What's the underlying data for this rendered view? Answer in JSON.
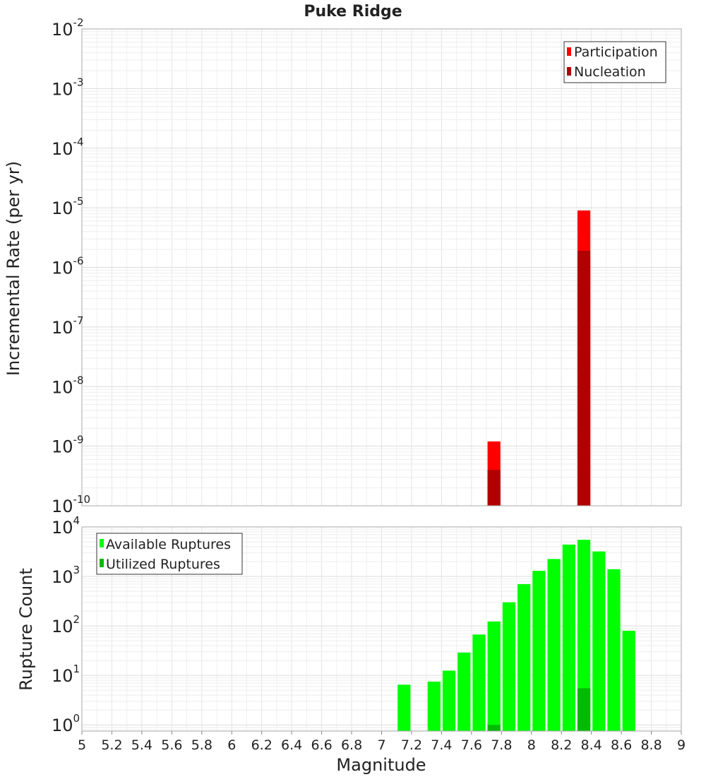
{
  "chart_data": {
    "title": "Puke Ridge",
    "type": "bar",
    "xlabel": "Magnitude",
    "xlim": [
      5,
      9
    ],
    "x_ticks": [
      "5",
      "5.2",
      "5.4",
      "5.6",
      "5.8",
      "6",
      "6.2",
      "6.4",
      "6.6",
      "6.8",
      "7",
      "7.2",
      "7.4",
      "7.6",
      "7.8",
      "8",
      "8.2",
      "8.4",
      "8.6",
      "8.8",
      "9"
    ],
    "bar_width": 0.1,
    "panels": [
      {
        "ylabel": "Incremental Rate (per yr)",
        "yscale": "log",
        "ylim": [
          1e-10,
          0.01
        ],
        "y_ticks": [
          {
            "base": "10",
            "exp": "-2",
            "value": 0.01
          },
          {
            "base": "10",
            "exp": "-3",
            "value": 0.001
          },
          {
            "base": "10",
            "exp": "-4",
            "value": 0.0001
          },
          {
            "base": "10",
            "exp": "-5",
            "value": 1e-05
          },
          {
            "base": "10",
            "exp": "-6",
            "value": 1e-06
          },
          {
            "base": "10",
            "exp": "-7",
            "value": 1e-07
          },
          {
            "base": "10",
            "exp": "-8",
            "value": 1e-08
          },
          {
            "base": "10",
            "exp": "-9",
            "value": 1e-09
          },
          {
            "base": "10",
            "exp": "-10",
            "value": 1e-10
          }
        ],
        "legend_position": "top-right",
        "series": [
          {
            "name": "Participation",
            "color": "#ff0000",
            "x": [
              7.75,
              8.35
            ],
            "values": [
              1.2e-09,
              9e-06
            ]
          },
          {
            "name": "Nucleation",
            "color": "#b20000",
            "x": [
              7.75,
              8.35
            ],
            "values": [
              4e-10,
              1.9e-06
            ]
          }
        ]
      },
      {
        "ylabel": "Rupture Count",
        "yscale": "log",
        "ylim": [
          0.75,
          10000
        ],
        "y_ticks": [
          {
            "base": "10",
            "exp": "4",
            "value": 10000
          },
          {
            "base": "10",
            "exp": "3",
            "value": 1000
          },
          {
            "base": "10",
            "exp": "2",
            "value": 100
          },
          {
            "base": "10",
            "exp": "1",
            "value": 10
          },
          {
            "base": "10",
            "exp": "0",
            "value": 1
          }
        ],
        "legend_position": "top-left",
        "series": [
          {
            "name": "Available Ruptures",
            "color": "#00ff00",
            "x": [
              7.15,
              7.35,
              7.45,
              7.55,
              7.65,
              7.75,
              7.85,
              7.95,
              8.05,
              8.15,
              8.25,
              8.35,
              8.45,
              8.55,
              8.65
            ],
            "values": [
              6.5,
              7.5,
              12.5,
              29,
              67,
              123,
              300,
              700,
              1300,
              2250,
              4400,
              5500,
              3200,
              1400,
              80
            ]
          },
          {
            "name": "Utilized Ruptures",
            "color": "#00bb00",
            "x": [
              7.75,
              8.35
            ],
            "values": [
              1.0,
              5.5
            ]
          }
        ]
      }
    ]
  }
}
